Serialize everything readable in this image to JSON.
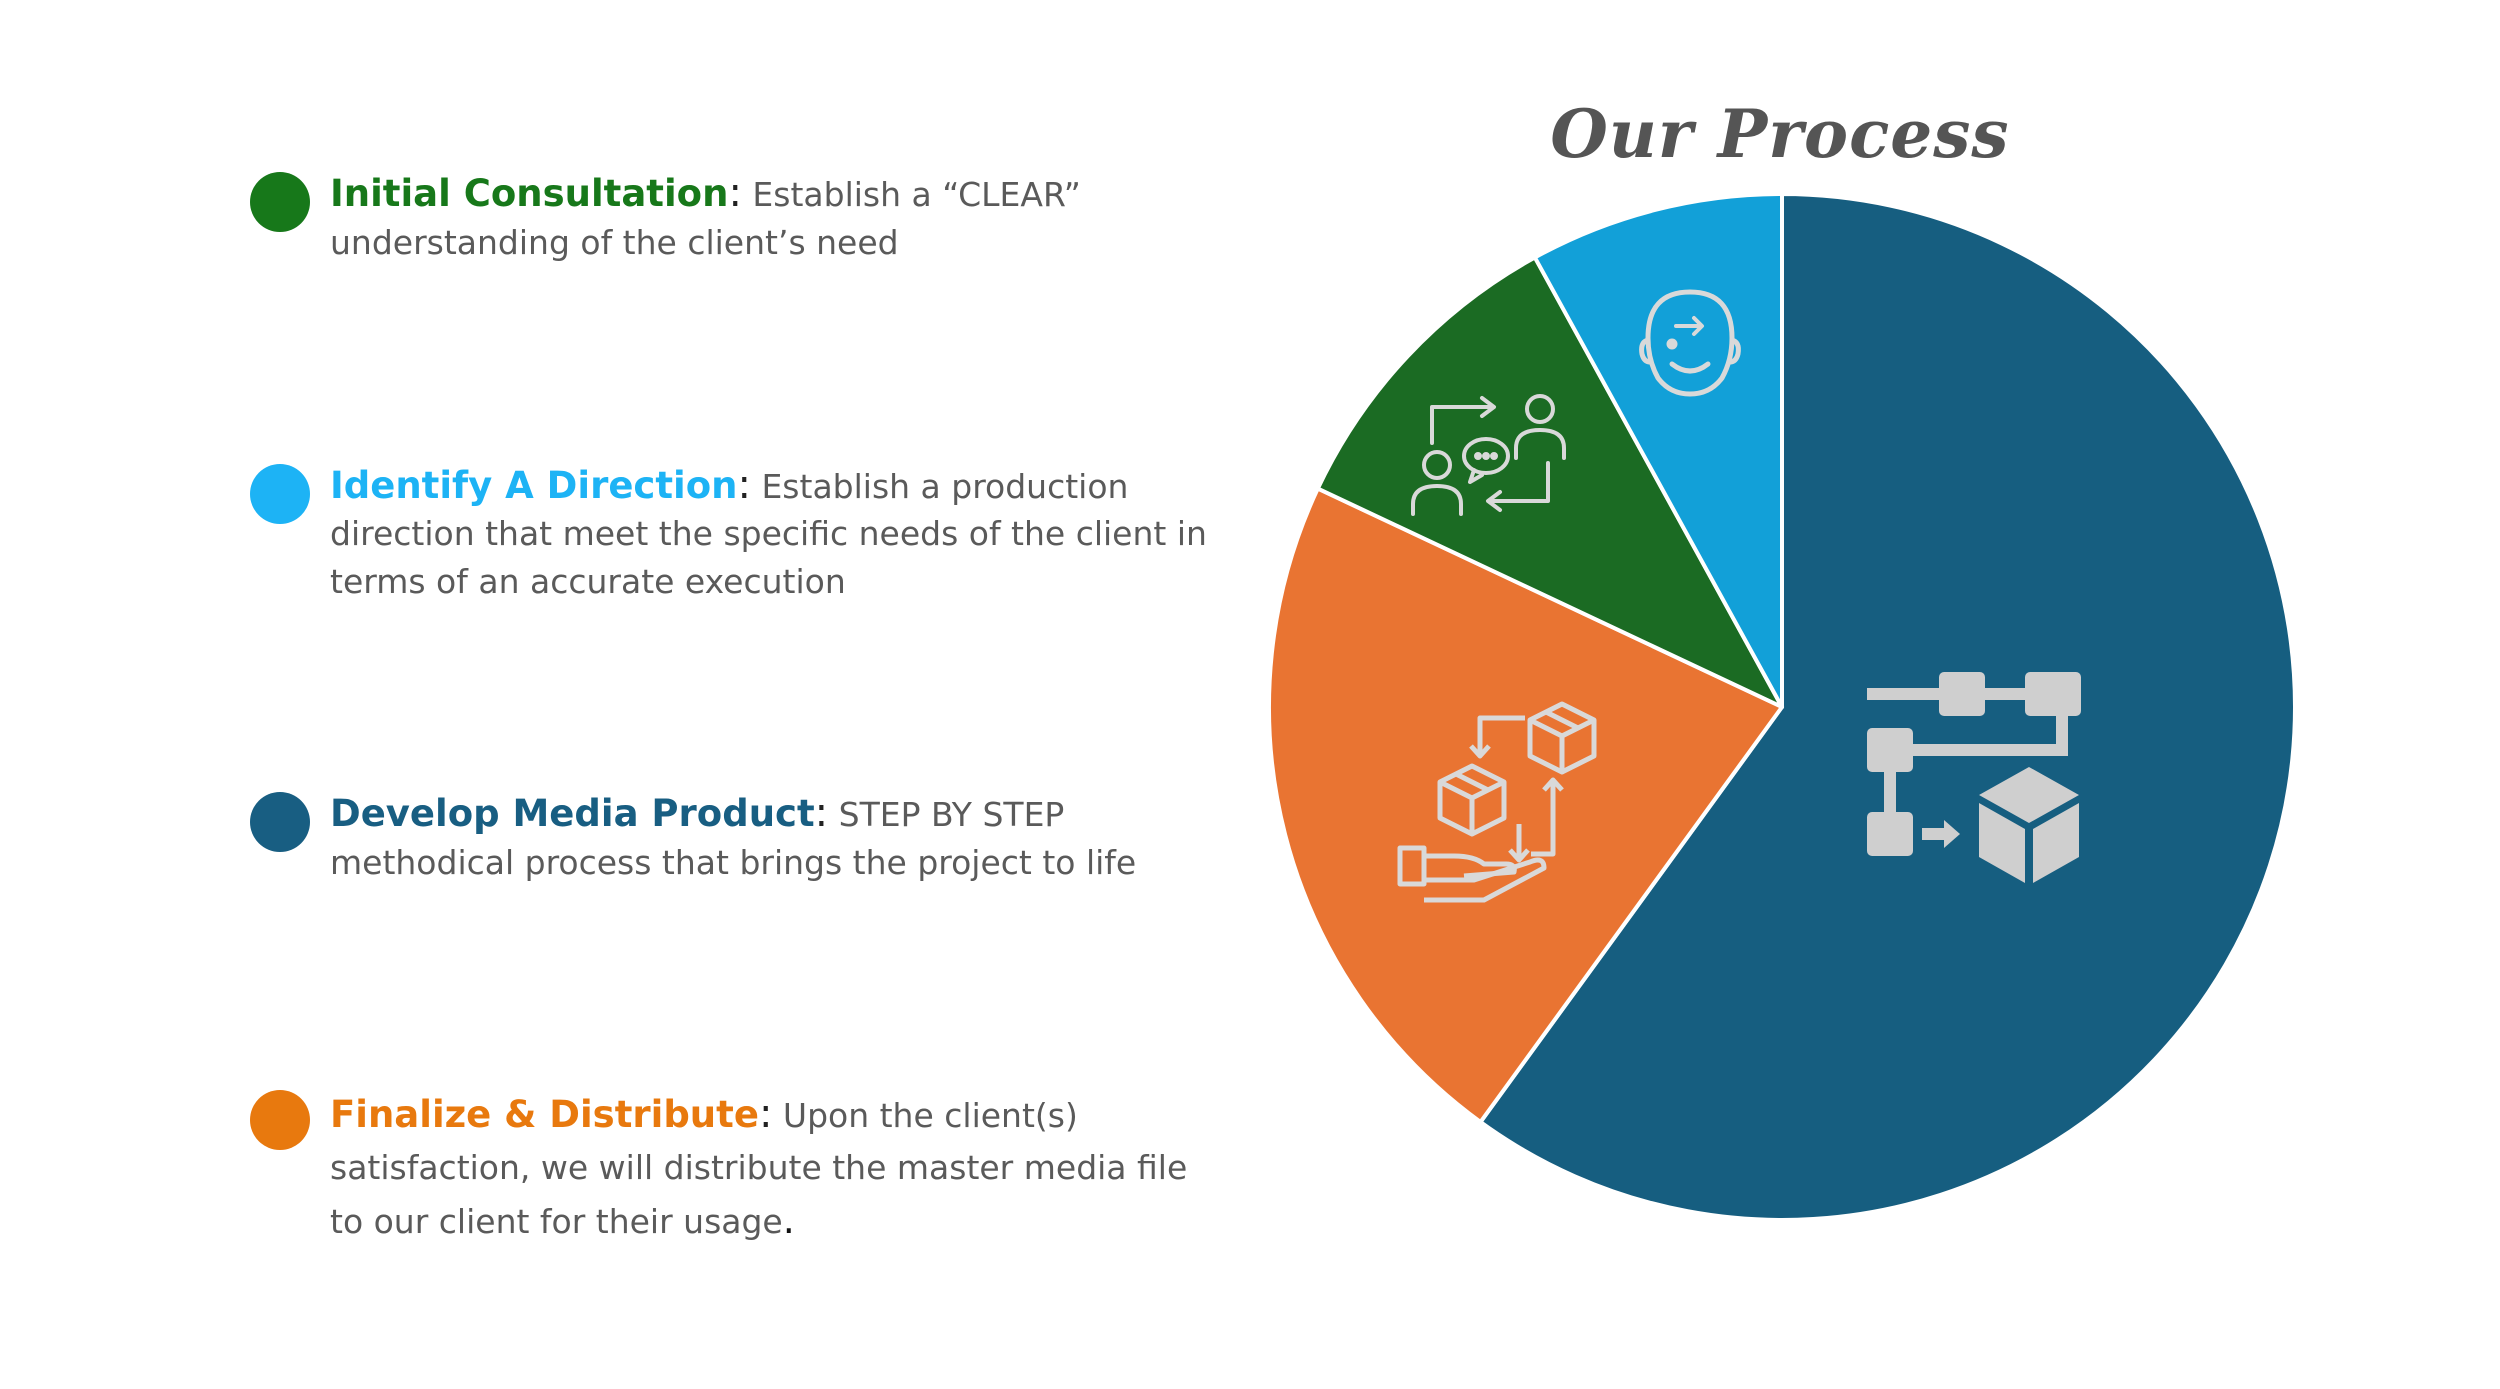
{
  "title": "Our Process",
  "colors": {
    "green": "#1b6b23",
    "blue": "#12a0d8",
    "dark_blue": "#165e80",
    "orange": "#e97432",
    "icon": "#cfcfcf",
    "dot_green": "#17781a",
    "dot_blue": "#1db3f5",
    "dot_dark": "#185e82",
    "dot_orange": "#e8790e"
  },
  "steps": [
    {
      "heading": "Initial Consultation",
      "sep": ":",
      "body": " Establish a “CLEAR” understanding of the client’s need",
      "end": ""
    },
    {
      "heading": "Identify A Direction",
      "sep": ":",
      "body": " Establish a production direction that meet the specific needs of the client in terms of an accurate execution",
      "end": ""
    },
    {
      "heading": "Develop Media Product",
      "sep": ":",
      "body": " STEP BY STEP methodical process that brings the project to life",
      "end": ""
    },
    {
      "heading": "Finalize & Distribute",
      "sep": ":",
      "body": " Upon the client(s) satisfaction, we will distribute the master media file to our client for their usage",
      "end": "."
    }
  ],
  "chart_data": {
    "type": "pie",
    "start": "12 o'clock, clockwise",
    "slices": [
      {
        "value": 60,
        "color": "#165e80",
        "icon": "workflow-icon"
      },
      {
        "value": 22,
        "color": "#e97432",
        "icon": "package-delivery-icon"
      },
      {
        "value": 10,
        "color": "#1b6b23",
        "icon": "people-exchange-icon"
      },
      {
        "value": 8,
        "color": "#12a0d8",
        "icon": "head-idea-icon"
      }
    ]
  }
}
